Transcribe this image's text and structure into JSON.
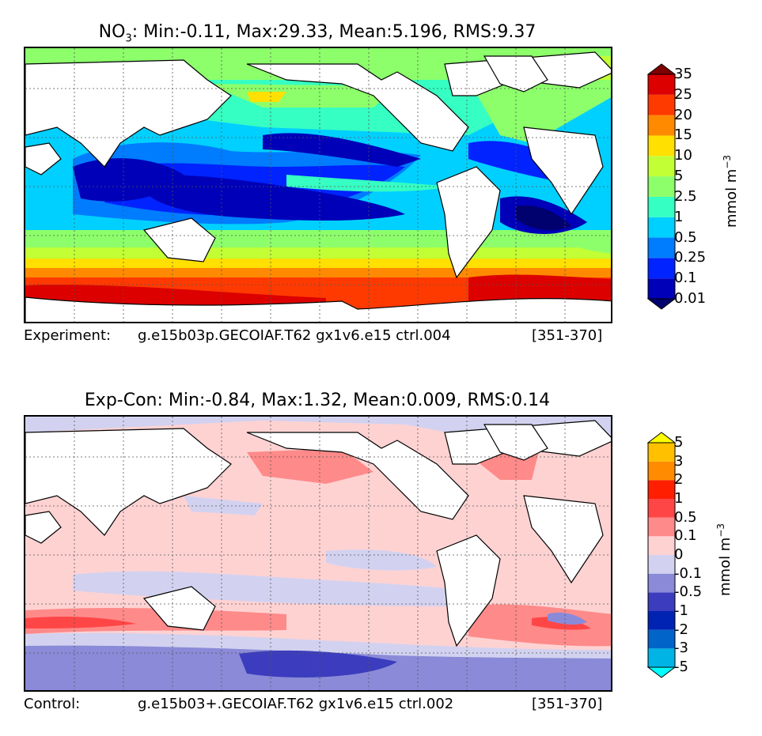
{
  "panel1": {
    "title_var": "NO",
    "title_sub": "3",
    "title_stats": ": Min:-0.11, Max:29.33, Mean:5.196, RMS:9.37",
    "caption_label": "Experiment:",
    "caption_case": "g.e15b03p.GECOIAF.T62 gx1v6.e15 ctrl.004",
    "caption_years": "[351-370]",
    "colorbar_unit": "mmol m",
    "colorbar_unit_exp": "−3",
    "levels": [
      "0.01",
      "0.1",
      "0.25",
      "0.5",
      "1",
      "2.5",
      "5",
      "10",
      "15",
      "20",
      "25",
      "35"
    ],
    "colors": [
      "#00006e",
      "#0000b8",
      "#0023ff",
      "#007cff",
      "#00d0ff",
      "#35ffc2",
      "#8cff6b",
      "#c2ff35",
      "#ffe000",
      "#ff8a00",
      "#ff3a00",
      "#dc0000",
      "#800000"
    ]
  },
  "panel2": {
    "title": "Exp-Con: Min:-0.84, Max:1.32, Mean:0.009, RMS:0.14",
    "caption_label": "Control:",
    "caption_case": "g.e15b03+.GECOIAF.T62 gx1v6.e15 ctrl.002",
    "caption_years": "[351-370]",
    "colorbar_unit": "mmol m",
    "colorbar_unit_exp": "−3",
    "levels": [
      "-5",
      "-3",
      "-2",
      "-1",
      "-0.5",
      "-0.1",
      "0",
      "0.1",
      "0.5",
      "1",
      "2",
      "3",
      "5"
    ],
    "colors": [
      "#00ffff",
      "#00b4e6",
      "#0064c8",
      "#0023b4",
      "#3c3cbe",
      "#8a8ad8",
      "#d2d2f0",
      "#ffd2d2",
      "#ff8a8a",
      "#ff4646",
      "#ff1e00",
      "#ff8c00",
      "#ffc000",
      "#ffff00"
    ]
  }
}
